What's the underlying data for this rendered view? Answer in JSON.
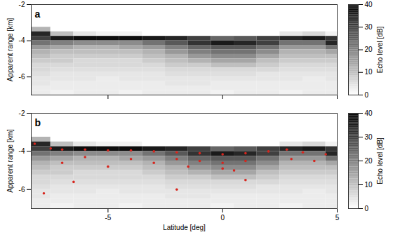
{
  "chart_data": [
    {
      "type": "heatmap",
      "panel": "a",
      "y_label": "Apparent range [km]",
      "xlim": [
        -8.35,
        5
      ],
      "xticks": [
        -5,
        0,
        5
      ],
      "ylim": [
        -7,
        -2
      ],
      "yticks": [
        -2,
        -4,
        -6
      ],
      "tick_labels": "y",
      "x_edges": [
        -8.35,
        -7.5,
        -6.5,
        -5.5,
        -4.5,
        -3.5,
        -2.5,
        -1.5,
        -0.5,
        0.5,
        1.5,
        2.5,
        3.5,
        4.5,
        5
      ],
      "y_edges": [
        -2,
        -2.25,
        -2.5,
        -2.75,
        -3,
        -3.25,
        -3.5,
        -3.75,
        -4,
        -4.25,
        -4.5,
        -4.75,
        -5,
        -5.25,
        -5.5,
        -5.75,
        -6,
        -6.25,
        -6.5,
        -6.75,
        -7
      ],
      "values": [
        [
          0,
          0,
          0,
          0,
          0,
          0,
          0,
          0,
          0,
          0,
          0,
          0,
          0,
          0
        ],
        [
          0,
          0,
          0,
          0,
          0,
          0,
          0,
          0,
          0,
          0,
          0,
          0,
          0,
          0
        ],
        [
          0,
          0,
          0,
          0,
          0,
          0,
          0,
          0,
          0,
          0,
          0,
          0,
          0,
          0
        ],
        [
          0,
          0,
          0,
          0,
          0,
          0,
          0,
          0,
          0,
          0,
          0,
          0,
          0,
          0
        ],
        [
          0,
          0,
          0,
          0,
          0,
          0,
          0,
          0,
          0,
          0,
          0,
          0,
          0,
          0
        ],
        [
          12,
          0,
          0,
          0,
          0,
          0,
          0,
          0,
          0,
          0,
          0,
          0,
          0,
          0
        ],
        [
          34,
          10,
          4,
          2,
          2,
          0,
          0,
          0,
          0,
          0,
          0,
          4,
          6,
          2
        ],
        [
          30,
          36,
          38,
          38,
          38,
          36,
          34,
          30,
          24,
          26,
          30,
          34,
          36,
          32
        ],
        [
          22,
          20,
          18,
          18,
          18,
          22,
          26,
          32,
          36,
          34,
          30,
          22,
          22,
          34
        ],
        [
          16,
          14,
          12,
          12,
          14,
          16,
          20,
          24,
          26,
          26,
          22,
          16,
          16,
          22
        ],
        [
          12,
          10,
          10,
          10,
          10,
          12,
          16,
          20,
          22,
          22,
          18,
          12,
          12,
          14
        ],
        [
          10,
          8,
          8,
          8,
          8,
          10,
          12,
          16,
          18,
          18,
          14,
          10,
          10,
          10
        ],
        [
          8,
          8,
          6,
          6,
          6,
          8,
          10,
          12,
          14,
          14,
          10,
          8,
          8,
          8
        ],
        [
          6,
          6,
          6,
          6,
          6,
          6,
          8,
          8,
          10,
          10,
          8,
          6,
          6,
          6
        ],
        [
          6,
          5,
          5,
          5,
          5,
          5,
          6,
          6,
          6,
          6,
          6,
          5,
          5,
          5
        ],
        [
          5,
          4,
          4,
          4,
          4,
          4,
          5,
          5,
          5,
          5,
          4,
          4,
          4,
          4
        ],
        [
          4,
          4,
          4,
          3,
          4,
          4,
          4,
          4,
          4,
          4,
          4,
          4,
          3,
          4
        ],
        [
          4,
          3,
          3,
          3,
          3,
          3,
          4,
          4,
          3,
          3,
          3,
          3,
          3,
          3
        ],
        [
          3,
          3,
          3,
          3,
          3,
          3,
          3,
          3,
          3,
          3,
          3,
          3,
          3,
          3
        ],
        [
          3,
          2,
          3,
          3,
          2,
          3,
          3,
          3,
          2,
          3,
          3,
          2,
          3,
          3
        ]
      ],
      "colorbar": {
        "label": "Echo level [dB]",
        "range": [
          0,
          40
        ],
        "ticks": [
          0,
          10,
          20,
          30,
          40
        ]
      }
    },
    {
      "type": "heatmap",
      "panel": "b",
      "x_label": "Latitude [deg]",
      "y_label": "Apparent range [km]",
      "xlim": [
        -8.35,
        5
      ],
      "xticks": [
        -5,
        0,
        5
      ],
      "ylim": [
        -7,
        -2
      ],
      "yticks": [
        -2,
        -4,
        -6
      ],
      "tick_labels": true,
      "x_edges": [
        -8.35,
        -7.5,
        -6.5,
        -5.5,
        -4.5,
        -3.5,
        -2.5,
        -1.5,
        -0.5,
        0.5,
        1.5,
        2.5,
        3.5,
        4.5,
        5
      ],
      "y_edges": [
        -2,
        -2.25,
        -2.5,
        -2.75,
        -3,
        -3.25,
        -3.5,
        -3.75,
        -4,
        -4.25,
        -4.5,
        -4.75,
        -5,
        -5.25,
        -5.5,
        -5.75,
        -6,
        -6.25,
        -6.5,
        -6.75,
        -7
      ],
      "values": [
        [
          0,
          0,
          0,
          0,
          0,
          0,
          0,
          0,
          0,
          0,
          0,
          0,
          0,
          0
        ],
        [
          0,
          0,
          0,
          0,
          0,
          0,
          0,
          0,
          0,
          0,
          0,
          0,
          0,
          0
        ],
        [
          0,
          0,
          0,
          0,
          0,
          0,
          0,
          0,
          0,
          0,
          0,
          0,
          0,
          0
        ],
        [
          0,
          0,
          0,
          0,
          0,
          0,
          0,
          0,
          0,
          0,
          0,
          0,
          0,
          0
        ],
        [
          0,
          0,
          0,
          0,
          0,
          0,
          0,
          0,
          0,
          0,
          0,
          0,
          0,
          0
        ],
        [
          12,
          0,
          0,
          0,
          0,
          0,
          0,
          0,
          0,
          0,
          0,
          0,
          0,
          0
        ],
        [
          34,
          10,
          4,
          2,
          2,
          0,
          0,
          0,
          0,
          0,
          0,
          4,
          6,
          2
        ],
        [
          30,
          36,
          38,
          38,
          38,
          36,
          34,
          30,
          24,
          26,
          30,
          34,
          36,
          32
        ],
        [
          22,
          20,
          18,
          18,
          18,
          22,
          26,
          32,
          36,
          34,
          30,
          22,
          22,
          34
        ],
        [
          16,
          14,
          12,
          12,
          14,
          16,
          20,
          24,
          26,
          26,
          22,
          16,
          16,
          22
        ],
        [
          12,
          10,
          10,
          10,
          10,
          12,
          16,
          20,
          22,
          22,
          18,
          12,
          12,
          14
        ],
        [
          10,
          8,
          8,
          8,
          8,
          10,
          12,
          16,
          18,
          18,
          14,
          10,
          10,
          10
        ],
        [
          8,
          8,
          6,
          6,
          6,
          8,
          10,
          12,
          14,
          14,
          10,
          8,
          8,
          8
        ],
        [
          6,
          6,
          6,
          6,
          6,
          6,
          8,
          8,
          10,
          10,
          8,
          6,
          6,
          6
        ],
        [
          6,
          5,
          5,
          5,
          5,
          5,
          6,
          6,
          6,
          6,
          6,
          5,
          5,
          5
        ],
        [
          5,
          4,
          4,
          4,
          4,
          4,
          5,
          5,
          5,
          5,
          4,
          4,
          4,
          4
        ],
        [
          4,
          4,
          4,
          3,
          4,
          4,
          4,
          4,
          4,
          4,
          4,
          4,
          3,
          4
        ],
        [
          4,
          3,
          3,
          3,
          3,
          3,
          4,
          4,
          3,
          3,
          3,
          3,
          3,
          3
        ],
        [
          3,
          3,
          3,
          3,
          3,
          3,
          3,
          3,
          3,
          3,
          3,
          3,
          3,
          3
        ],
        [
          3,
          2,
          3,
          3,
          2,
          3,
          3,
          3,
          2,
          3,
          3,
          2,
          3,
          3
        ]
      ],
      "detections": {
        "color": "#d7261e",
        "marker": "circle",
        "lat": [
          -8.2,
          -7.5,
          -7,
          -6,
          -5,
          -4,
          -3,
          -2,
          -1,
          0,
          1,
          2,
          2.8,
          3.5,
          4.5,
          -2,
          -1,
          0,
          1,
          -1.5,
          0,
          0.5,
          -6,
          -4,
          -7,
          -5,
          3,
          4,
          -3,
          -6.5,
          -2,
          1,
          -7.8
        ],
        "range": [
          -3.6,
          -3.85,
          -3.9,
          -3.9,
          -3.95,
          -3.95,
          -4.0,
          -4.05,
          -4.1,
          -4.15,
          -4.1,
          -4.0,
          -3.9,
          -4.05,
          -4.15,
          -4.4,
          -4.5,
          -4.6,
          -4.5,
          -4.8,
          -4.9,
          -5.0,
          -4.3,
          -4.4,
          -4.6,
          -4.8,
          -4.4,
          -4.5,
          -4.6,
          -5.6,
          -6.0,
          -5.5,
          -6.2
        ]
      },
      "colorbar": {
        "label": "Echo level [dB]",
        "range": [
          0,
          40
        ],
        "ticks": [
          0,
          10,
          20,
          30,
          40
        ]
      }
    }
  ]
}
